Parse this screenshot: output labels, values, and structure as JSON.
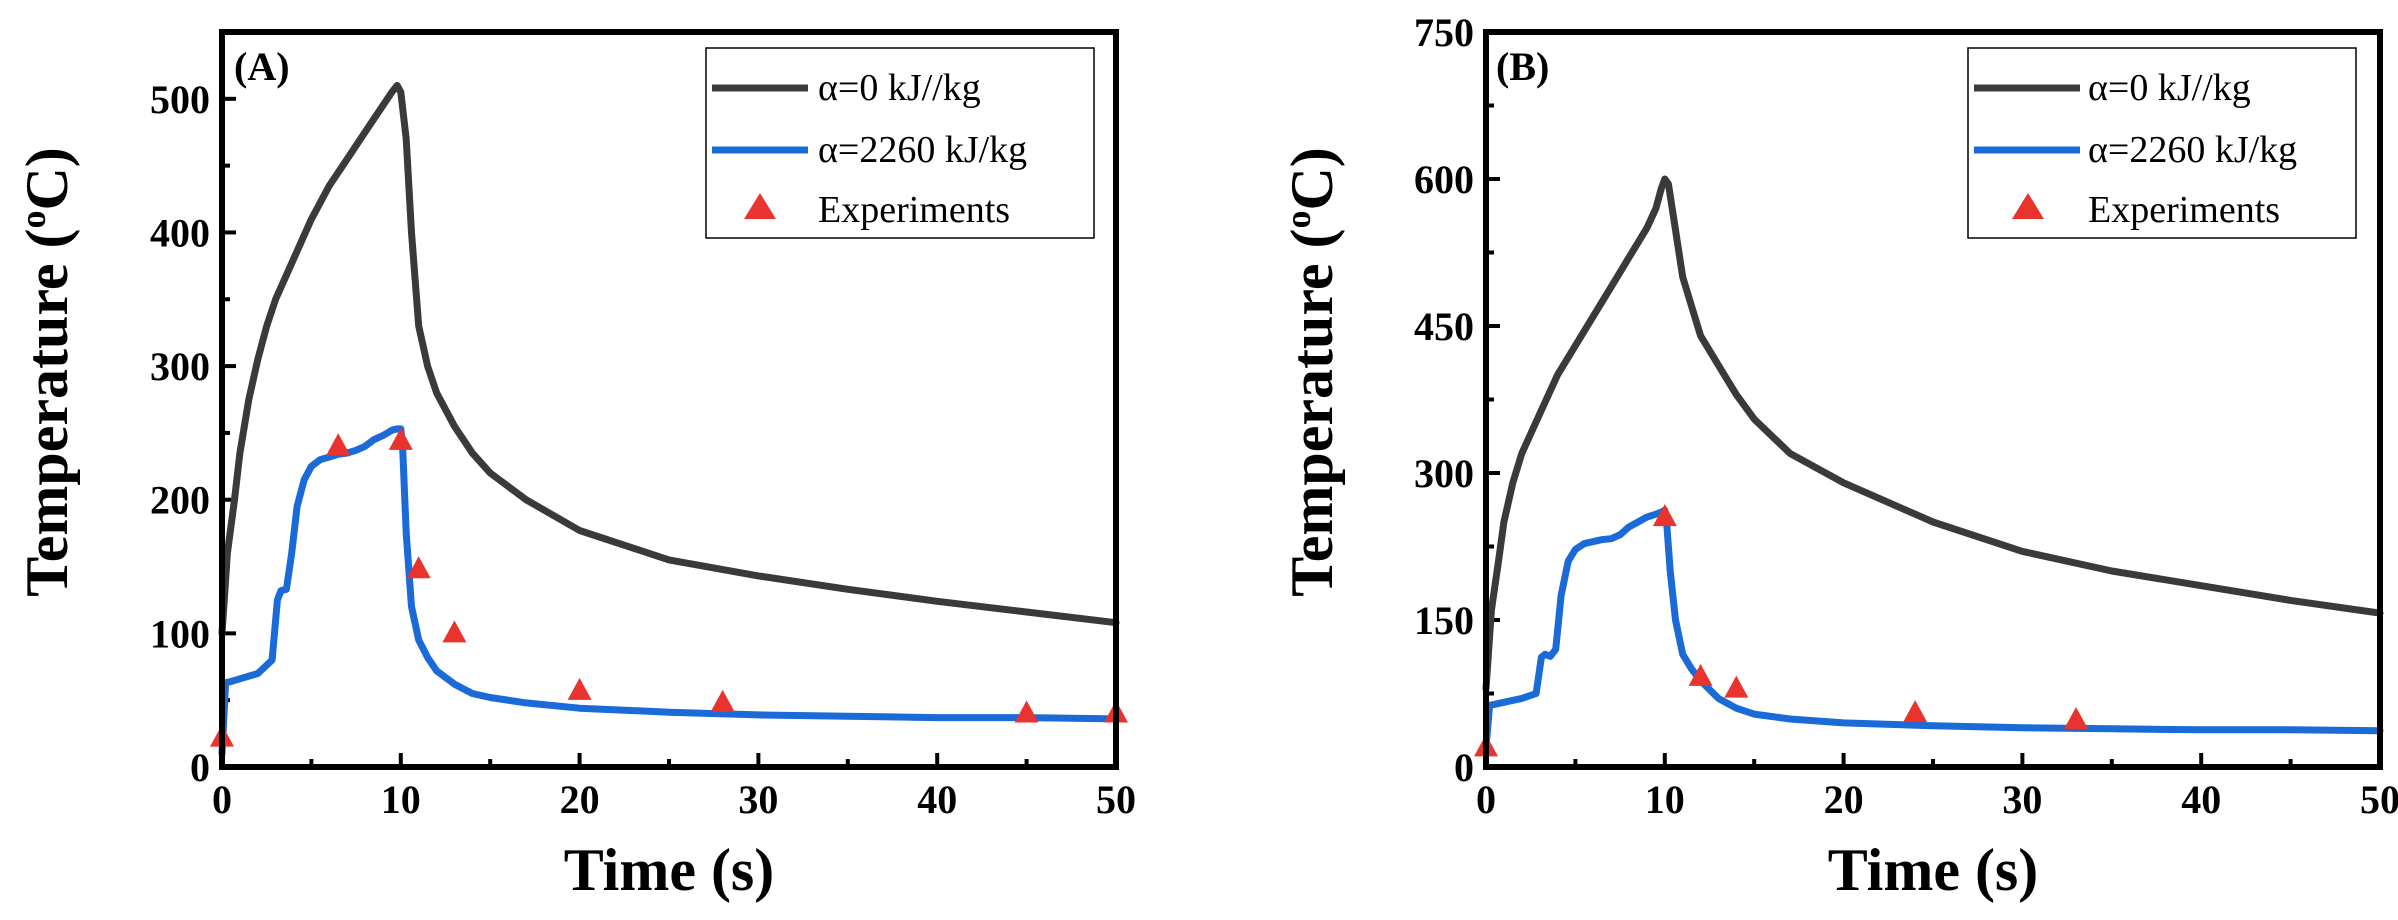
{
  "colors": {
    "series_zero": "#3a3a3a",
    "series_2260": "#1a6ad8",
    "experiments": "#e8332e"
  },
  "chart_data": [
    {
      "type": "line",
      "panel_label": "(A)",
      "xlabel": "Time (s)",
      "ylabel": "Temperature (",
      "ylabel_sup": "o",
      "ylabel_unit": "C)",
      "xlim": [
        0,
        50
      ],
      "ylim": [
        0,
        550
      ],
      "xticks": [
        0,
        10,
        20,
        30,
        40,
        50
      ],
      "yticks": [
        0,
        100,
        200,
        300,
        400,
        500
      ],
      "xtick_labels": [
        "0",
        "10",
        "20",
        "30",
        "40",
        "50"
      ],
      "ytick_labels": [
        "0",
        "100",
        "200",
        "300",
        "400",
        "500"
      ],
      "legend": [
        "α=0 kJ//kg",
        "α=2260 kJ/kg",
        "Experiments"
      ],
      "series": [
        {
          "name": "α=0 kJ//kg",
          "kind": "line",
          "x": [
            0,
            0.3,
            0.7,
            1,
            1.5,
            2,
            2.5,
            3,
            4,
            5,
            6,
            7,
            8,
            9,
            9.5,
            9.8,
            10,
            10.3,
            10.6,
            11,
            11.5,
            12,
            13,
            14,
            15,
            17,
            20,
            25,
            30,
            35,
            40,
            45,
            50
          ],
          "y": [
            100,
            160,
            200,
            235,
            275,
            305,
            330,
            350,
            380,
            410,
            435,
            455,
            475,
            495,
            505,
            510,
            505,
            470,
            400,
            330,
            300,
            280,
            255,
            235,
            220,
            200,
            177,
            155,
            143,
            133,
            124,
            116,
            108
          ]
        },
        {
          "name": "α=2260 kJ/kg",
          "kind": "line",
          "x": [
            0,
            0.2,
            0.5,
            1,
            2,
            2.8,
            3.1,
            3.3,
            3.6,
            3.9,
            4.2,
            4.6,
            5,
            5.5,
            6,
            6.5,
            7,
            7.5,
            8,
            8.5,
            9,
            9.5,
            9.8,
            10,
            10.1,
            10.3,
            10.6,
            11,
            11.5,
            12,
            13,
            14,
            15,
            17,
            20,
            25,
            30,
            35,
            40,
            45,
            50
          ],
          "y": [
            10,
            63,
            64,
            66,
            70,
            80,
            125,
            132,
            133,
            160,
            195,
            215,
            225,
            230,
            232,
            234,
            235,
            237,
            240,
            245,
            248,
            252,
            253,
            253,
            240,
            175,
            120,
            95,
            82,
            72,
            62,
            55,
            52,
            48,
            44,
            41,
            39,
            38,
            37,
            37,
            36
          ]
        },
        {
          "name": "Experiments",
          "kind": "scatter",
          "x": [
            0,
            6.5,
            10,
            11,
            13,
            20,
            28,
            45,
            50
          ],
          "y": [
            22,
            240,
            244,
            148,
            100,
            57,
            48,
            40,
            40
          ]
        }
      ]
    },
    {
      "type": "line",
      "panel_label": "(B)",
      "xlabel": "Time (s)",
      "ylabel": "Temperature (",
      "ylabel_sup": "o",
      "ylabel_unit": "C)",
      "xlim": [
        0,
        50
      ],
      "ylim": [
        0,
        750
      ],
      "xticks": [
        0,
        10,
        20,
        30,
        40,
        50
      ],
      "yticks": [
        0,
        150,
        300,
        450,
        600,
        750
      ],
      "xtick_labels": [
        "0",
        "10",
        "20",
        "30",
        "40",
        "50"
      ],
      "ytick_labels": [
        "0",
        "150",
        "300",
        "450",
        "600",
        "750"
      ],
      "legend": [
        "α=0 kJ//kg",
        "α=2260 kJ/kg",
        "Experiments"
      ],
      "series": [
        {
          "name": "α=0 kJ//kg",
          "kind": "line",
          "x": [
            0,
            0.3,
            0.7,
            1,
            1.5,
            2,
            3,
            4,
            5,
            6,
            7,
            8,
            9,
            9.5,
            9.8,
            10,
            10.2,
            10.5,
            11,
            11.5,
            12,
            13,
            14,
            15,
            17,
            20,
            25,
            30,
            35,
            40,
            45,
            50
          ],
          "y": [
            80,
            160,
            210,
            250,
            290,
            320,
            360,
            400,
            430,
            460,
            490,
            520,
            550,
            570,
            590,
            600,
            595,
            560,
            500,
            470,
            440,
            410,
            380,
            355,
            320,
            290,
            250,
            220,
            200,
            185,
            170,
            157
          ]
        },
        {
          "name": "α=2260 kJ/kg",
          "kind": "line",
          "x": [
            0,
            0.2,
            0.5,
            1,
            2,
            2.8,
            3.1,
            3.3,
            3.6,
            3.9,
            4.2,
            4.6,
            5,
            5.5,
            6,
            6.5,
            7,
            7.5,
            8,
            8.5,
            9,
            9.5,
            9.8,
            10,
            10.1,
            10.3,
            10.6,
            11,
            11.5,
            12,
            13,
            14,
            15,
            17,
            20,
            25,
            30,
            35,
            40,
            45,
            50
          ],
          "y": [
            20,
            63,
            64,
            66,
            70,
            75,
            112,
            115,
            113,
            120,
            175,
            210,
            222,
            228,
            230,
            232,
            233,
            237,
            245,
            250,
            255,
            258,
            260,
            262,
            250,
            200,
            150,
            115,
            100,
            88,
            70,
            60,
            54,
            49,
            45,
            42,
            40,
            39,
            38,
            38,
            37
          ]
        },
        {
          "name": "Experiments",
          "kind": "scatter",
          "x": [
            0,
            10,
            12,
            14,
            24,
            33
          ],
          "y": [
            20,
            255,
            92,
            80,
            55,
            48
          ]
        }
      ]
    }
  ]
}
